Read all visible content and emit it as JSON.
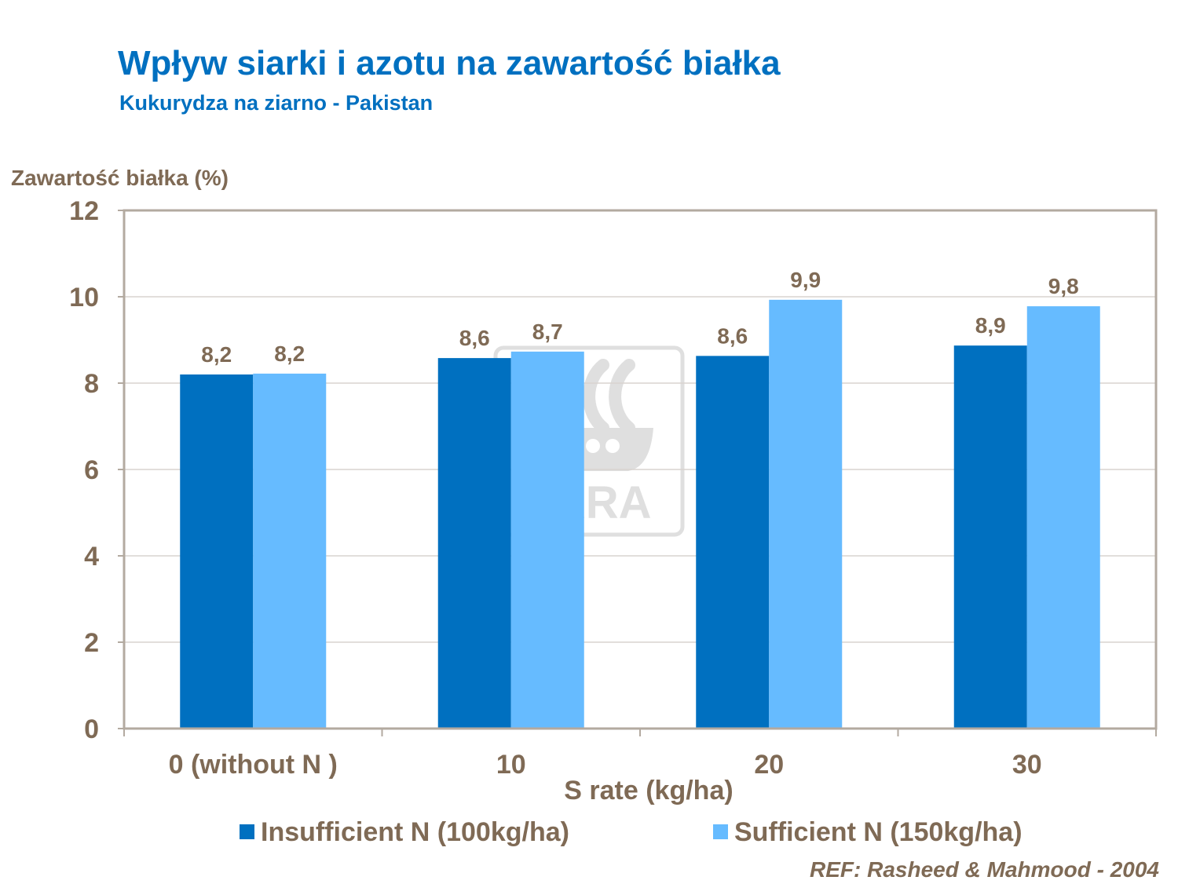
{
  "header": {
    "title": "Wpływ siarki i azotu na zawartość białka",
    "subtitle": "Kukurydza na ziarno - Pakistan"
  },
  "reference": "REF: Rasheed & Mahmood - 2004",
  "watermark": {
    "text": "YARA",
    "icon": "yara-viking-ship-logo"
  },
  "colors": {
    "series1": "#0070c0",
    "series2": "#66bbff",
    "title": "#0070c0",
    "labels": "#7f6a55",
    "frame": "#b3aaa0",
    "grid": "#d9d4cf"
  },
  "chart_data": {
    "type": "bar",
    "ylabel": "Zawartość białka (%)",
    "xlabel": "S rate (kg/ha)",
    "ylim": [
      0,
      12
    ],
    "yticks": [
      0,
      2,
      4,
      6,
      8,
      10,
      12
    ],
    "categories": [
      "0 (without N )",
      "10",
      "20",
      "30"
    ],
    "grid": true,
    "legend": "bottom",
    "series": [
      {
        "name": "Insufficient N (100kg/ha)",
        "values": [
          8.2,
          8.58,
          8.63,
          8.87
        ],
        "labels": [
          "8,2",
          "8,6",
          "8,6",
          "8,9"
        ]
      },
      {
        "name": "Sufficient N (150kg/ha)",
        "values": [
          8.22,
          8.73,
          9.93,
          9.78
        ],
        "labels": [
          "8,2",
          "8,7",
          "9,9",
          "9,8"
        ]
      }
    ]
  }
}
